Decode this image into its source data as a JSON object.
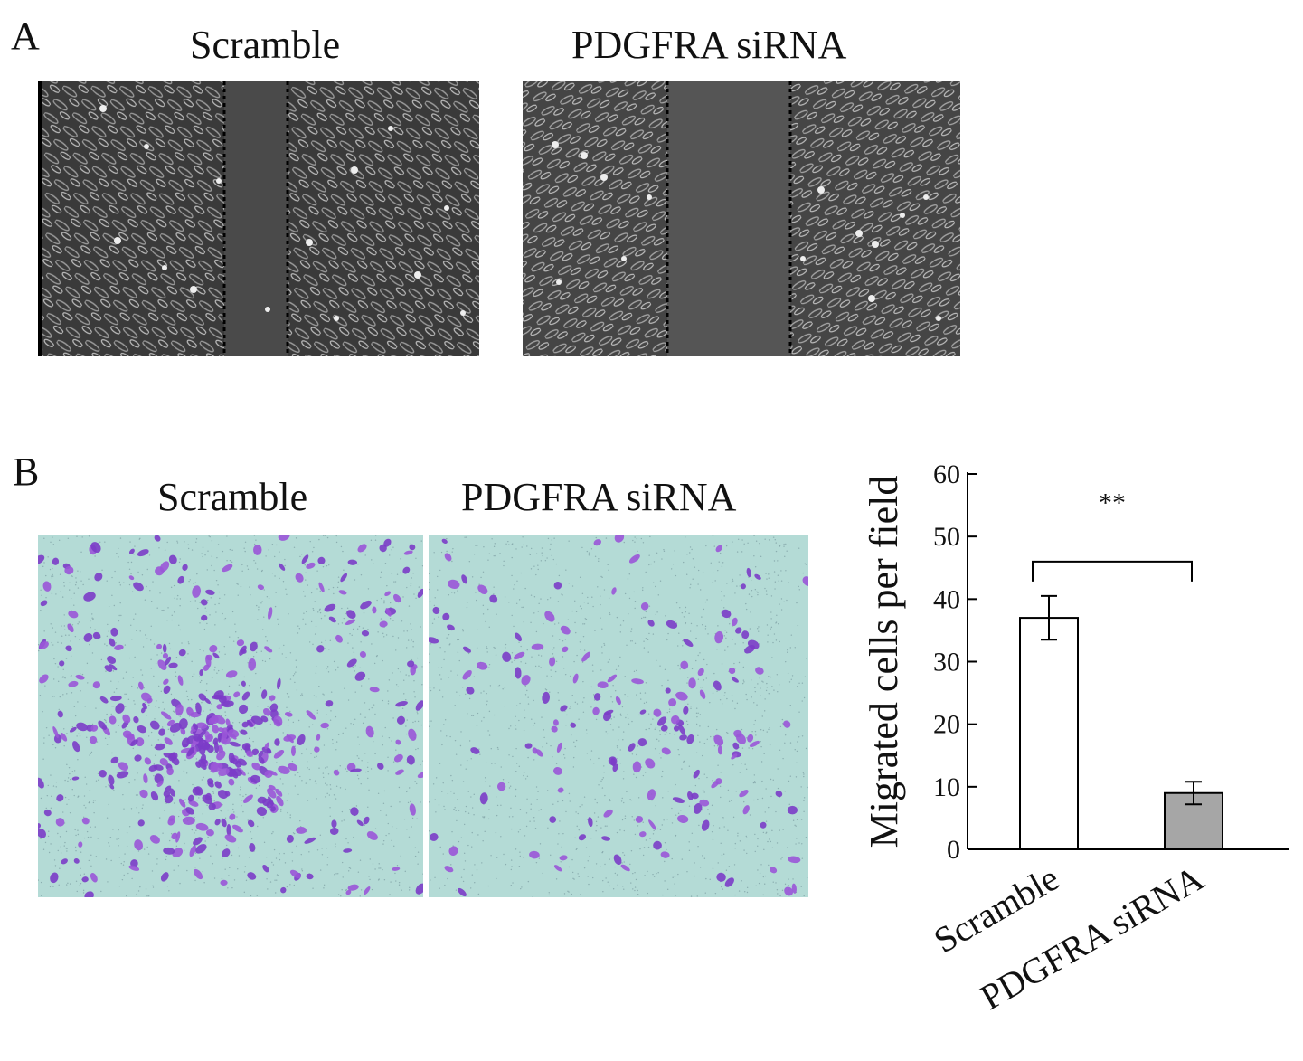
{
  "panel_a": {
    "letter": "A",
    "images": [
      {
        "title": "Scramble"
      },
      {
        "title": "PDGFRA siRNA"
      }
    ]
  },
  "panel_b": {
    "letter": "B",
    "images": [
      {
        "title": "Scramble"
      },
      {
        "title": "PDGFRA siRNA"
      }
    ]
  },
  "chart_data": {
    "type": "bar",
    "title": "",
    "xlabel": "",
    "ylabel": "Migrated cells per field",
    "ylim": [
      0,
      60
    ],
    "yticks": [
      0,
      10,
      20,
      30,
      40,
      50,
      60
    ],
    "categories": [
      "Scramble",
      "PDGFRA siRNA"
    ],
    "series": [
      {
        "values": [
          37,
          9
        ],
        "errors": [
          3.5,
          1.8
        ]
      }
    ],
    "bar_colors": [
      "#ffffff",
      "#a6a6a6"
    ],
    "significance": {
      "label": "**",
      "between": [
        0,
        1
      ]
    },
    "grid": false
  }
}
